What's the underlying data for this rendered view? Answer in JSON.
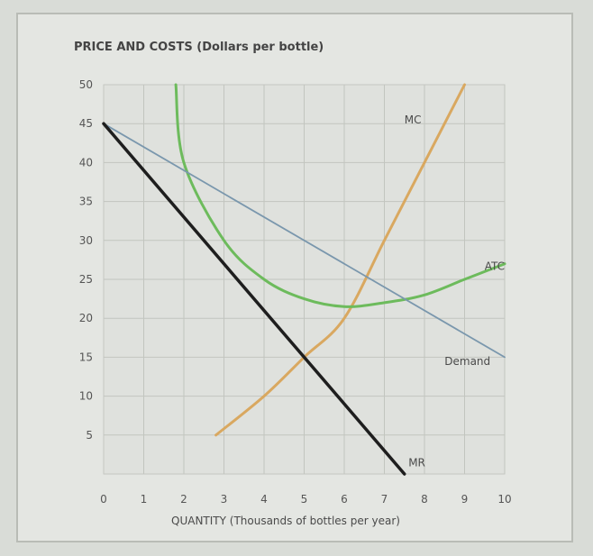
{
  "chart_data": {
    "type": "line",
    "title": "PRICE AND COSTS (Dollars per bottle)",
    "xlabel": "QUANTITY (Thousands of bottles per year)",
    "ylabel": "PRICE AND COSTS (Dollars per bottle)",
    "xlim": [
      0,
      10
    ],
    "ylim": [
      0,
      50
    ],
    "x_ticks": [
      "0",
      "1",
      "2",
      "3",
      "4",
      "5",
      "6",
      "7",
      "8",
      "9",
      "10"
    ],
    "y_ticks": [
      "5",
      "10",
      "15",
      "20",
      "25",
      "30",
      "35",
      "40",
      "45",
      "50"
    ],
    "grid": true,
    "series": [
      {
        "name": "MC",
        "color": "#d9a860",
        "points": [
          [
            2.8,
            5
          ],
          [
            4,
            10
          ],
          [
            5,
            15
          ],
          [
            6,
            20
          ],
          [
            7,
            30
          ],
          [
            8,
            40
          ],
          [
            9,
            50
          ]
        ]
      },
      {
        "name": "ATC",
        "color": "#6dbb5c",
        "points": [
          [
            1.8,
            50
          ],
          [
            2,
            40
          ],
          [
            3,
            30
          ],
          [
            4,
            25
          ],
          [
            5,
            22.5
          ],
          [
            6,
            21.5
          ],
          [
            7,
            22
          ],
          [
            8,
            23
          ],
          [
            9,
            25
          ],
          [
            10,
            27
          ]
        ]
      },
      {
        "name": "Demand",
        "color": "#7a97ad",
        "points": [
          [
            0,
            45
          ],
          [
            10,
            15
          ]
        ]
      },
      {
        "name": "MR",
        "color": "#1e1e1e",
        "points": [
          [
            0,
            45
          ],
          [
            7.5,
            0
          ]
        ]
      }
    ]
  }
}
